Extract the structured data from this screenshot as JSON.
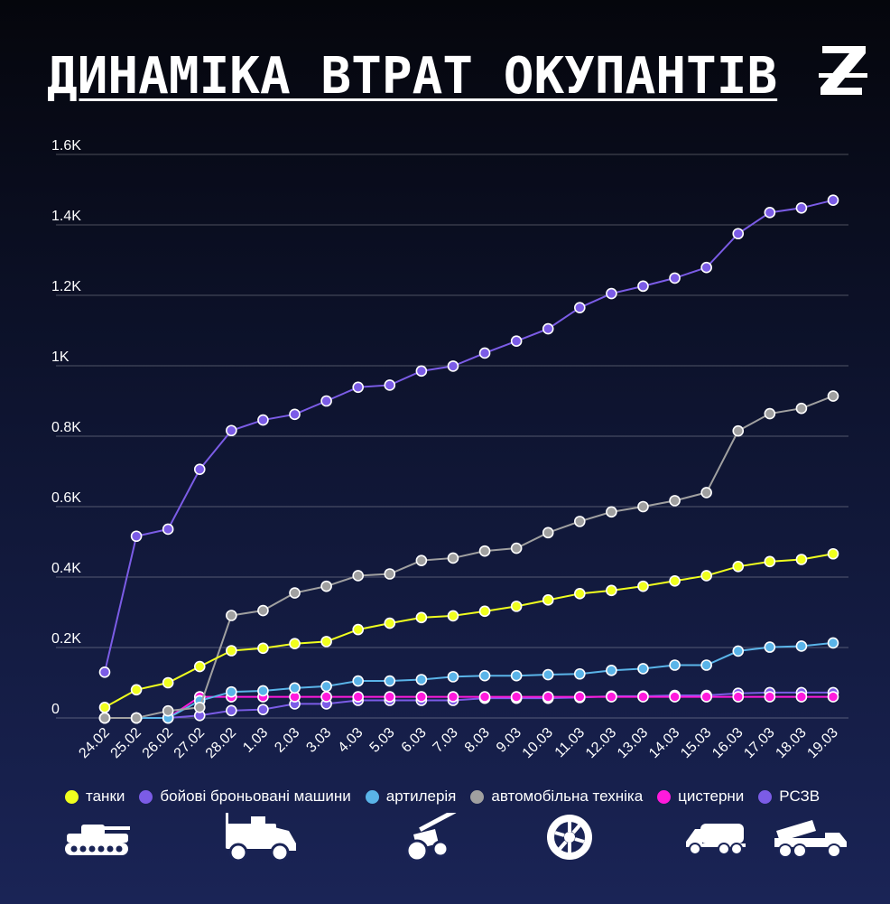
{
  "title": "ДИНАМІКА ВТРАТ ОКУПАНТІВ",
  "logo": "Z-logo",
  "chart_data": {
    "type": "line",
    "title": "ДИНАМІКА ВТРАТ ОКУПАНТІВ",
    "xlabel": "",
    "ylabel": "",
    "ylim": [
      0,
      1600
    ],
    "yticks": [
      0,
      200,
      400,
      600,
      800,
      1000,
      1200,
      1400,
      1600
    ],
    "ytick_labels": [
      "0",
      "0.2K",
      "0.4K",
      "0.6K",
      "0.8K",
      "1K",
      "1.2K",
      "1.4K",
      "1.6K"
    ],
    "grid": true,
    "legend": "bottom",
    "categories": [
      "24.02",
      "25.02",
      "26.02",
      "27.02",
      "28.02",
      "1.03",
      "2.03",
      "3.03",
      "4.03",
      "5.03",
      "6.03",
      "7.03",
      "8.03",
      "9.03",
      "10.03",
      "11.03",
      "12.03",
      "13.03",
      "14.03",
      "15.03",
      "16.03",
      "17.03",
      "18.03",
      "19.03"
    ],
    "series": [
      {
        "name": "танки",
        "color": "#f0ff1e",
        "values": [
          30,
          80,
          100,
          146,
          191,
          198,
          211,
          217,
          251,
          269,
          285,
          290,
          303,
          317,
          335,
          353,
          362,
          374,
          389,
          404,
          430,
          444,
          450,
          466
        ]
      },
      {
        "name": "бойові броньовані машини",
        "color": "#7b5ce6",
        "values": [
          130,
          516,
          536,
          706,
          816,
          846,
          862,
          900,
          939,
          945,
          985,
          999,
          1036,
          1070,
          1105,
          1165,
          1205,
          1226,
          1249,
          1279,
          1375,
          1435,
          1448,
          1470
        ]
      },
      {
        "name": "артилерія",
        "color": "#5ab4e8",
        "values": [
          0,
          0,
          0,
          49,
          74,
          77,
          85,
          90,
          105,
          105,
          109,
          117,
          120,
          120,
          123,
          125,
          135,
          140,
          150,
          150,
          190,
          201,
          204,
          213
        ]
      },
      {
        "name": "автомобільна техніка",
        "color": "#a0a0a0",
        "values": [
          0,
          0,
          20,
          30,
          291,
          305,
          355,
          374,
          404,
          409,
          447,
          454,
          474,
          482,
          526,
          558,
          585,
          600,
          617,
          640,
          815,
          864,
          879,
          914
        ]
      },
      {
        "name": "цистерни",
        "color": "#ff1adc",
        "values": [
          0,
          0,
          0,
          60,
          60,
          60,
          60,
          60,
          60,
          60,
          60,
          60,
          60,
          60,
          60,
          60,
          60,
          60,
          60,
          60,
          60,
          60,
          60,
          60
        ]
      },
      {
        "name": "РСЗВ",
        "color": "#7b5ce6",
        "values": [
          0,
          0,
          0,
          7,
          21,
          24,
          40,
          40,
          50,
          50,
          50,
          50,
          56,
          56,
          56,
          58,
          62,
          62,
          64,
          64,
          70,
          72,
          72,
          72
        ]
      }
    ]
  },
  "icons": [
    "tank-icon",
    "armored-vehicle-icon",
    "artillery-icon",
    "wheel-icon",
    "fuel-tanker-icon",
    "mlrs-icon"
  ]
}
